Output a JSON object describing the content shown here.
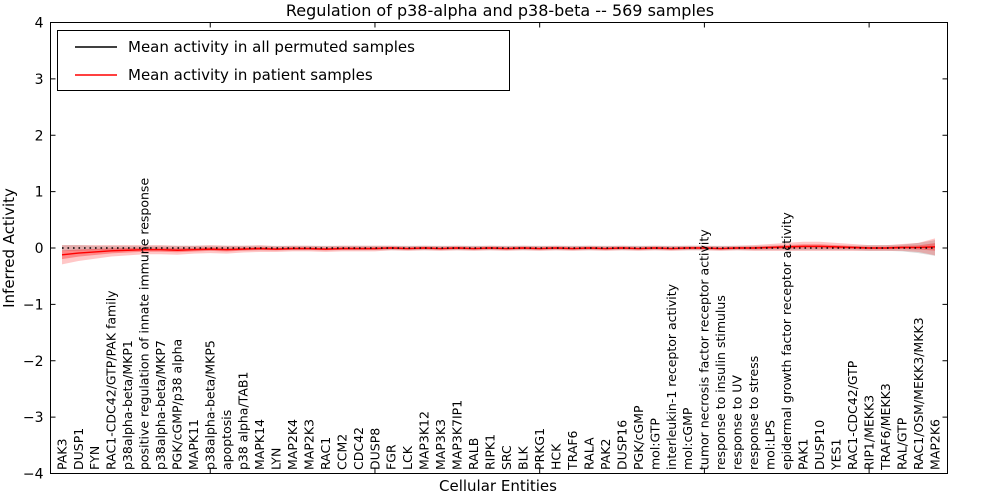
{
  "figure": {
    "background": "#ffffff"
  },
  "chart_data": {
    "type": "line",
    "title": "Regulation of p38-alpha and p38-beta -- 569 samples",
    "xlabel": "Cellular Entities",
    "ylabel": "Inferred Activity",
    "ylim": [
      -4,
      4
    ],
    "yticks": [
      -4,
      -3,
      -2,
      -1,
      0,
      1,
      2,
      3,
      4
    ],
    "ytick_labels": [
      "−4",
      "−3",
      "−2",
      "−1",
      "0",
      "1",
      "2",
      "3",
      "4"
    ],
    "xtick_index_positions": [
      9,
      19,
      29,
      39,
      49
    ],
    "grid": false,
    "legend_position": "upper left",
    "categories": [
      "PAK3",
      "DUSP1",
      "FYN",
      "RAC1-CDC42/GTP/PAK family",
      "p38alpha-beta/MKP1",
      "positive regulation of innate immune response",
      "p38alpha-beta/MKP7",
      "PGK/cGMP/p38 alpha",
      "MAPK11",
      "p38alpha-beta/MKP5",
      "apoptosis",
      "p38 alpha/TAB1",
      "MAPK14",
      "LYN",
      "MAP2K4",
      "MAP2K3",
      "RAC1",
      "CCM2",
      "CDC42",
      "DUSP8",
      "FGR",
      "LCK",
      "MAP3K12",
      "MAP3K3",
      "MAP3K7IP1",
      "RALB",
      "RIPK1",
      "SRC",
      "BLK",
      "PRKG1",
      "HCK",
      "TRAF6",
      "RALA",
      "PAK2",
      "DUSP16",
      "PGK/cGMP",
      "mol:GTP",
      "interleukin-1 receptor activity",
      "mol:cGMP",
      "tumor necrosis factor receptor activity",
      "response to insulin stimulus",
      "response to UV",
      "response to stress",
      "mol:LPS",
      "epidermal growth factor receptor activity",
      "PAK1",
      "DUSP10",
      "YES1",
      "RAC1-CDC42/GTP",
      "RIP1/MEKK3",
      "TRAF6/MEKK3",
      "RAL/GTP",
      "RAC1/OSM/MEKK3/MKK3",
      "MAP2K6"
    ],
    "series": [
      {
        "name": "Mean activity in all permuted samples",
        "color": "#000000",
        "line_style": "dotted",
        "values": [
          0,
          0,
          0,
          0,
          0,
          0,
          0,
          0,
          0,
          0,
          0,
          0,
          0,
          0,
          0,
          0,
          0,
          0,
          0,
          0,
          0,
          0,
          0,
          0,
          0,
          0,
          0,
          0,
          0,
          0,
          0,
          0,
          0,
          0,
          0,
          0,
          0,
          0,
          0,
          0,
          0,
          0,
          0,
          0,
          0,
          0,
          0,
          0,
          0,
          0,
          0,
          0,
          0,
          0
        ],
        "band_halfwidth": [
          0.05,
          0.05,
          0.04,
          0.04,
          0.04,
          0.04,
          0.04,
          0.04,
          0.04,
          0.04,
          0.04,
          0.04,
          0.04,
          0.04,
          0.04,
          0.04,
          0.04,
          0.04,
          0.04,
          0.04,
          0.04,
          0.04,
          0.04,
          0.04,
          0.04,
          0.04,
          0.04,
          0.04,
          0.04,
          0.04,
          0.04,
          0.04,
          0.04,
          0.04,
          0.04,
          0.04,
          0.04,
          0.04,
          0.04,
          0.04,
          0.04,
          0.04,
          0.04,
          0.04,
          0.04,
          0.04,
          0.04,
          0.04,
          0.04,
          0.05,
          0.05,
          0.06,
          0.09,
          0.14
        ],
        "band_color": "#999999",
        "band_opacity": 0.35
      },
      {
        "name": "Mean activity in patient samples",
        "color": "#ff0000",
        "line_style": "solid",
        "values": [
          -0.12,
          -0.09,
          -0.07,
          -0.05,
          -0.04,
          -0.03,
          -0.03,
          -0.04,
          -0.03,
          -0.02,
          -0.03,
          -0.02,
          -0.01,
          -0.02,
          -0.01,
          -0.01,
          -0.02,
          -0.01,
          -0.01,
          -0.01,
          0,
          -0.01,
          0,
          -0.01,
          0,
          -0.01,
          0,
          -0.01,
          0,
          -0.01,
          0,
          -0.01,
          0,
          -0.01,
          0,
          -0.01,
          0,
          -0.01,
          0,
          0,
          -0.01,
          0,
          0,
          0.01,
          0.02,
          0.03,
          0.03,
          0.02,
          0.01,
          0,
          0,
          0.01,
          0.01,
          0.02
        ],
        "band_halfwidth": [
          0.17,
          0.14,
          0.12,
          0.1,
          0.09,
          0.08,
          0.08,
          0.08,
          0.07,
          0.07,
          0.07,
          0.06,
          0.06,
          0.05,
          0.05,
          0.05,
          0.05,
          0.05,
          0.05,
          0.05,
          0.04,
          0.04,
          0.04,
          0.04,
          0.04,
          0.04,
          0.04,
          0.04,
          0.04,
          0.04,
          0.04,
          0.04,
          0.04,
          0.04,
          0.04,
          0.04,
          0.04,
          0.04,
          0.04,
          0.04,
          0.04,
          0.04,
          0.05,
          0.06,
          0.07,
          0.08,
          0.08,
          0.07,
          0.06,
          0.05,
          0.05,
          0.06,
          0.08,
          0.15
        ],
        "band_color": "#ff0000",
        "band_opacity": 0.22,
        "inner_band_scale": 0.45,
        "inner_band_opacity": 0.32
      }
    ]
  }
}
